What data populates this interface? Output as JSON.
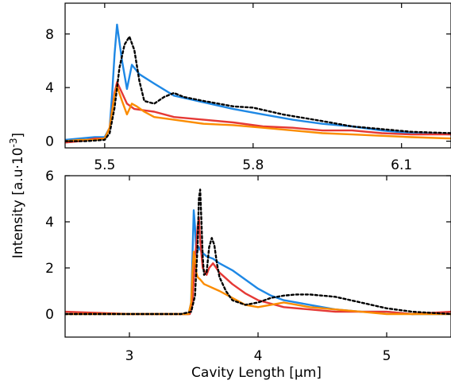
{
  "figure": {
    "ylabel_main": "Intensity [a.u·10",
    "ylabel_exp": "-3",
    "ylabel_close": "]",
    "xlabel": "Cavity Length [µm]"
  },
  "chart_data": [
    {
      "type": "line",
      "title": "",
      "xlim": [
        5.42,
        6.2
      ],
      "ylim": [
        -0.5,
        10.3
      ],
      "xticks": [
        5.5,
        5.8,
        6.1
      ],
      "yticks": [
        0,
        4,
        8
      ],
      "grid": false,
      "series": [
        {
          "color": "#1e88e5",
          "style": "solid",
          "x": [
            5.42,
            5.45,
            5.48,
            5.5,
            5.51,
            5.515,
            5.52,
            5.525,
            5.535,
            5.545,
            5.555,
            5.57,
            5.6,
            5.64,
            5.7,
            5.76,
            5.82,
            5.88,
            5.94,
            6.0,
            6.06,
            6.12,
            6.2
          ],
          "y": [
            0.1,
            0.2,
            0.3,
            0.3,
            1.0,
            3.5,
            6.5,
            8.7,
            6.0,
            3.9,
            5.7,
            5.0,
            4.3,
            3.4,
            2.9,
            2.4,
            2.0,
            1.6,
            1.3,
            1.1,
            0.8,
            0.6,
            0.5
          ]
        },
        {
          "color": "#e53935",
          "style": "solid",
          "x": [
            5.42,
            5.45,
            5.48,
            5.5,
            5.51,
            5.52,
            5.525,
            5.535,
            5.545,
            5.56,
            5.58,
            5.6,
            5.64,
            5.7,
            5.76,
            5.82,
            5.88,
            5.94,
            6.0,
            6.06,
            6.12,
            6.2
          ],
          "y": [
            -0.1,
            0.0,
            0.2,
            0.2,
            1.0,
            3.6,
            4.4,
            3.6,
            2.8,
            2.4,
            2.3,
            2.2,
            1.8,
            1.6,
            1.4,
            1.1,
            1.0,
            0.8,
            0.8,
            0.6,
            0.5,
            0.5
          ]
        },
        {
          "color": "#fb8c00",
          "style": "solid",
          "x": [
            5.42,
            5.45,
            5.48,
            5.5,
            5.51,
            5.52,
            5.525,
            5.535,
            5.545,
            5.555,
            5.565,
            5.58,
            5.6,
            5.64,
            5.7,
            5.76,
            5.82,
            5.88,
            5.94,
            6.0,
            6.06,
            6.12,
            6.2
          ],
          "y": [
            0.0,
            0.1,
            0.1,
            0.2,
            1.0,
            3.4,
            4.1,
            3.0,
            2.0,
            2.8,
            2.6,
            2.2,
            1.8,
            1.6,
            1.3,
            1.2,
            1.0,
            0.8,
            0.6,
            0.5,
            0.4,
            0.3,
            0.2
          ]
        },
        {
          "color": "#000000",
          "style": "dashed",
          "x": [
            5.42,
            5.46,
            5.5,
            5.51,
            5.52,
            5.53,
            5.54,
            5.55,
            5.56,
            5.57,
            5.58,
            5.6,
            5.62,
            5.64,
            5.66,
            5.7,
            5.76,
            5.8,
            5.86,
            5.94,
            6.0,
            6.06,
            6.12,
            6.2
          ],
          "y": [
            0.0,
            0.0,
            0.1,
            0.6,
            2.5,
            5.5,
            7.2,
            7.8,
            6.8,
            4.5,
            3.0,
            2.8,
            3.3,
            3.6,
            3.3,
            3.0,
            2.6,
            2.5,
            2.0,
            1.5,
            1.1,
            0.9,
            0.7,
            0.6
          ]
        }
      ]
    },
    {
      "type": "line",
      "title": "",
      "xlim": [
        2.5,
        5.5
      ],
      "ylim": [
        -1,
        6
      ],
      "xticks": [
        3,
        4,
        5
      ],
      "yticks": [
        0,
        2,
        4,
        6
      ],
      "grid": false,
      "series": [
        {
          "color": "#1e88e5",
          "style": "solid",
          "x": [
            2.5,
            3.0,
            3.4,
            3.46,
            3.48,
            3.49,
            3.5,
            3.51,
            3.52,
            3.54,
            3.56,
            3.58,
            3.6,
            3.65,
            3.7,
            3.8,
            3.9,
            4.0,
            4.1,
            4.2,
            4.4,
            4.6,
            4.8,
            5.0,
            5.2,
            5.5
          ],
          "y": [
            0.0,
            0.0,
            0.0,
            0.0,
            0.5,
            2.5,
            4.5,
            3.8,
            2.6,
            2.9,
            2.7,
            2.6,
            2.5,
            2.4,
            2.2,
            1.9,
            1.5,
            1.1,
            0.8,
            0.6,
            0.4,
            0.2,
            0.1,
            0.1,
            0.0,
            0.0
          ]
        },
        {
          "color": "#e53935",
          "style": "solid",
          "x": [
            2.5,
            3.0,
            3.4,
            3.47,
            3.49,
            3.5,
            3.51,
            3.52,
            3.53,
            3.54,
            3.55,
            3.57,
            3.6,
            3.62,
            3.65,
            3.7,
            3.8,
            3.9,
            4.0,
            4.2,
            4.4,
            4.6,
            4.8,
            5.0,
            5.2,
            5.5
          ],
          "y": [
            0.1,
            0.0,
            0.0,
            0.0,
            0.5,
            1.5,
            2.5,
            3.0,
            3.8,
            4.2,
            3.2,
            2.0,
            1.7,
            2.0,
            2.2,
            1.8,
            1.3,
            0.9,
            0.6,
            0.3,
            0.2,
            0.1,
            0.1,
            0.1,
            0.0,
            0.1
          ]
        },
        {
          "color": "#fb8c00",
          "style": "solid",
          "x": [
            2.5,
            3.0,
            3.4,
            3.46,
            3.48,
            3.49,
            3.5,
            3.51,
            3.52,
            3.53,
            3.55,
            3.58,
            3.62,
            3.66,
            3.7,
            3.8,
            3.9,
            4.0,
            4.1,
            4.2,
            4.4,
            4.6,
            4.8,
            5.0,
            5.2,
            5.5
          ],
          "y": [
            0.0,
            0.0,
            0.0,
            0.0,
            0.5,
            1.8,
            2.7,
            2.4,
            1.8,
            1.6,
            1.5,
            1.3,
            1.2,
            1.1,
            1.0,
            0.7,
            0.4,
            0.3,
            0.4,
            0.5,
            0.3,
            0.2,
            0.1,
            0.0,
            0.0,
            0.0
          ]
        },
        {
          "color": "#000000",
          "style": "dashed",
          "x": [
            2.5,
            3.0,
            3.4,
            3.48,
            3.51,
            3.53,
            3.54,
            3.55,
            3.56,
            3.57,
            3.58,
            3.6,
            3.62,
            3.64,
            3.66,
            3.68,
            3.7,
            3.75,
            3.8,
            3.9,
            4.0,
            4.1,
            4.2,
            4.3,
            4.4,
            4.5,
            4.6,
            4.8,
            5.0,
            5.2,
            5.5
          ],
          "y": [
            0.0,
            0.0,
            0.0,
            0.1,
            0.8,
            3.0,
            5.0,
            5.4,
            4.0,
            2.5,
            1.7,
            1.8,
            2.9,
            3.3,
            3.0,
            2.2,
            1.6,
            1.0,
            0.6,
            0.4,
            0.5,
            0.7,
            0.8,
            0.85,
            0.85,
            0.8,
            0.75,
            0.5,
            0.25,
            0.1,
            0.0
          ]
        }
      ]
    }
  ]
}
